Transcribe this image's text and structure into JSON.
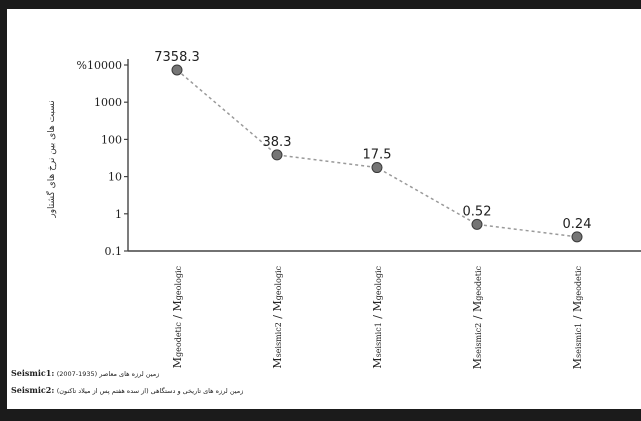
{
  "chart_data": {
    "type": "line",
    "scale": "log",
    "ylim": [
      0.1,
      10000
    ],
    "yticks": [
      "%10000",
      "1000",
      "100",
      "10",
      "1",
      "0.1"
    ],
    "ytick_values": [
      10000,
      1000,
      100,
      10,
      1,
      0.1
    ],
    "ylabel": "نسبت های بین نرخ های گشتاور",
    "categories": [
      {
        "num": "geodetic",
        "den": "geologic"
      },
      {
        "num": "seismic2",
        "den": "geologic"
      },
      {
        "num": "seismic1",
        "den": "geologic"
      },
      {
        "num": "seismic2",
        "den": "geodetic"
      },
      {
        "num": "seismic1",
        "den": "geodetic"
      }
    ],
    "values": [
      7358.3,
      38.3,
      17.5,
      0.52,
      0.24
    ],
    "labels": [
      "7358.3",
      "38.3",
      "17.5",
      "0.52",
      "0.24"
    ],
    "grid": false,
    "colors": {
      "point": "#757575",
      "point_stroke": "#3a3a3a",
      "line": "#9a9a9a",
      "axis": "#444444"
    }
  },
  "legend": [
    {
      "key": "Seismic1:",
      "text": "(2007-1935) زمین لرزه های معاصر"
    },
    {
      "key": "Seismic2:",
      "text": "زمین لرزه های تاریخی و دستگاهی (از سده هفتم پس از میلاد تاکنون)"
    }
  ]
}
